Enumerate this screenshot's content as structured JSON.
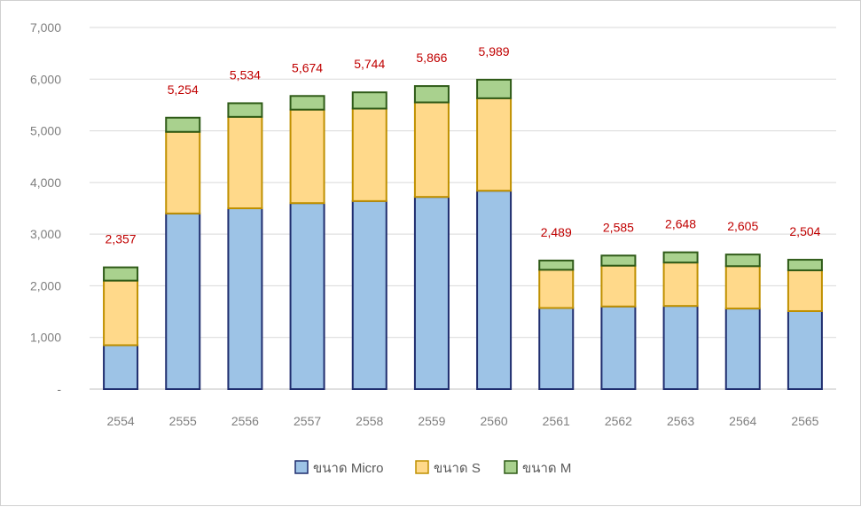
{
  "chart_data": {
    "type": "bar",
    "stacked": true,
    "categories": [
      "2554",
      "2555",
      "2556",
      "2557",
      "2558",
      "2559",
      "2560",
      "2561",
      "2562",
      "2563",
      "2564",
      "2565"
    ],
    "series": [
      {
        "name": "ขนาด Micro",
        "color": "#9dc3e6",
        "stroke": "#1f2d6e",
        "values": [
          850,
          3400,
          3500,
          3600,
          3640,
          3720,
          3840,
          1570,
          1600,
          1610,
          1560,
          1510
        ]
      },
      {
        "name": "ขนาด S",
        "color": "#ffd98a",
        "stroke": "#bf9000",
        "values": [
          1250,
          1580,
          1770,
          1810,
          1790,
          1830,
          1790,
          740,
          790,
          840,
          820,
          790
        ]
      },
      {
        "name": "ขนาด M",
        "color": "#a9d18e",
        "stroke": "#2e5a17",
        "values": [
          257,
          274,
          264,
          264,
          314,
          316,
          359,
          179,
          195,
          198,
          225,
          204
        ]
      }
    ],
    "totals": [
      "2,357",
      "5,254",
      "5,534",
      "5,674",
      "5,744",
      "5,866",
      "5,989",
      "2,489",
      "2,585",
      "2,648",
      "2,605",
      "2,504"
    ],
    "yticks": [
      "-",
      "1,000",
      "2,000",
      "3,000",
      "4,000",
      "5,000",
      "6,000",
      "7,000"
    ],
    "ylim": [
      0,
      7000
    ],
    "grid": true,
    "legend": "bottom"
  }
}
